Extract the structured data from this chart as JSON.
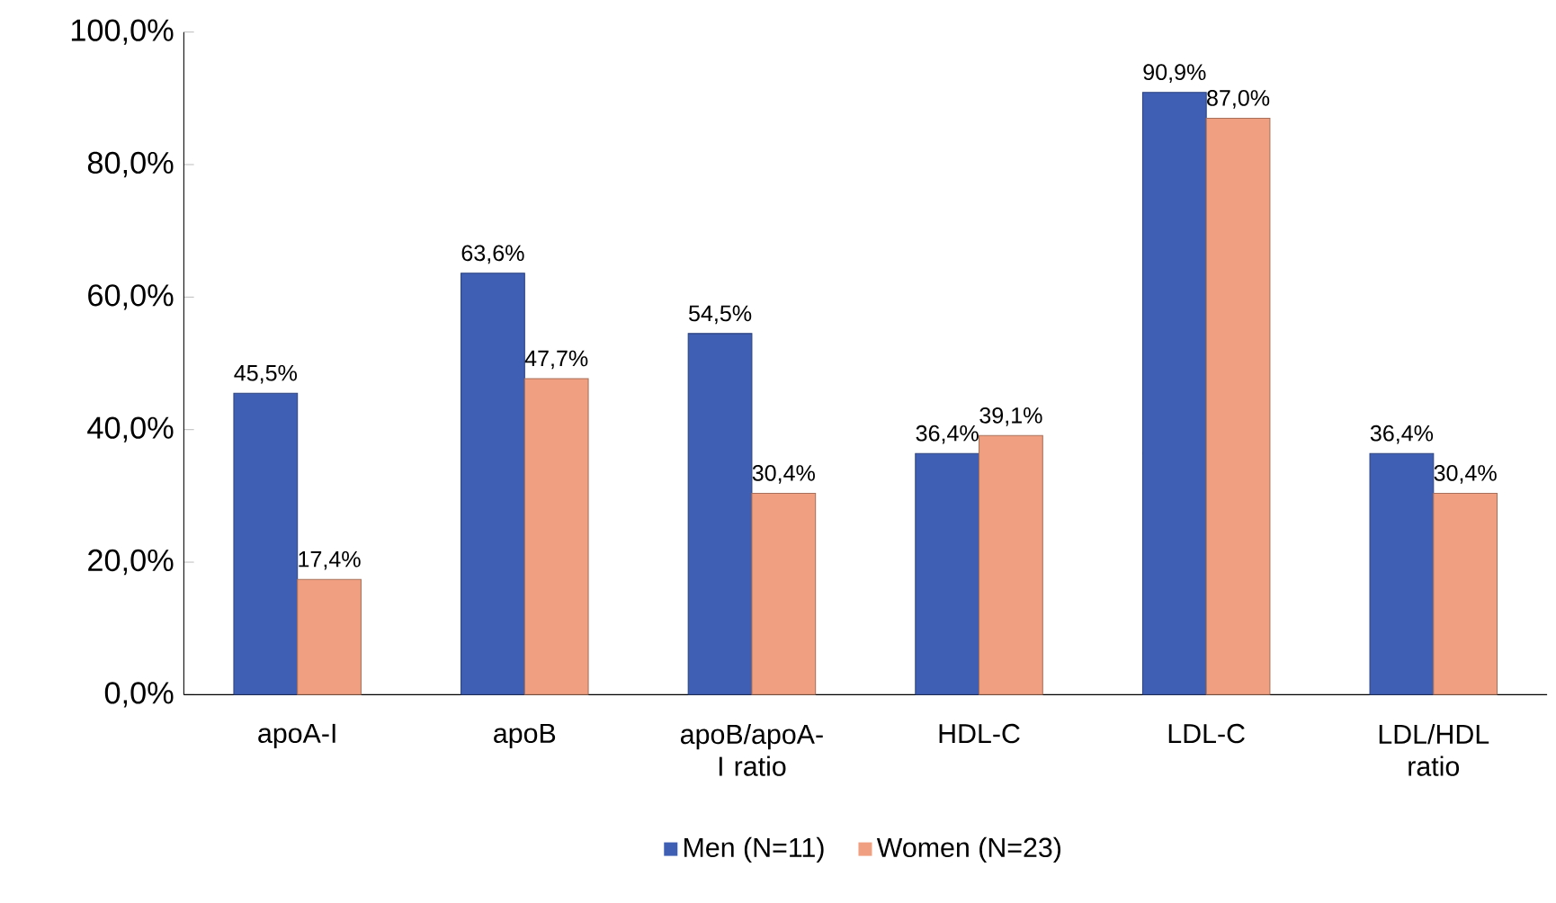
{
  "chart_data": {
    "type": "bar",
    "categories": [
      "apoA-I",
      "apoB",
      "apoB/apoA-I ratio",
      "HDL-C",
      "LDL-C",
      "LDL/HDL ratio"
    ],
    "series": [
      {
        "name": "Men (N=11)",
        "color": "#3f5fb5",
        "values": [
          45.5,
          63.6,
          54.5,
          36.4,
          90.9,
          36.4
        ],
        "value_labels": [
          "45,5%",
          "63,6%",
          "54,5%",
          "36,4%",
          "90,9%",
          "36,4%"
        ]
      },
      {
        "name": "Women (N=23)",
        "color": "#f0a080",
        "values": [
          17.4,
          47.7,
          30.4,
          39.1,
          87.0,
          30.4
        ],
        "value_labels": [
          "17,4%",
          "47,7%",
          "30,4%",
          "39,1%",
          "87,0%",
          "30,4%"
        ]
      }
    ],
    "ylim": [
      0,
      100
    ],
    "yticks": [
      {
        "value": 0,
        "label": "0,0%"
      },
      {
        "value": 20,
        "label": "20,0%"
      },
      {
        "value": 40,
        "label": "40,0%"
      },
      {
        "value": 60,
        "label": "60,0%"
      },
      {
        "value": 80,
        "label": "80,0%"
      },
      {
        "value": 100,
        "label": "100,0%"
      }
    ],
    "grid": false,
    "legend": "bottom"
  }
}
